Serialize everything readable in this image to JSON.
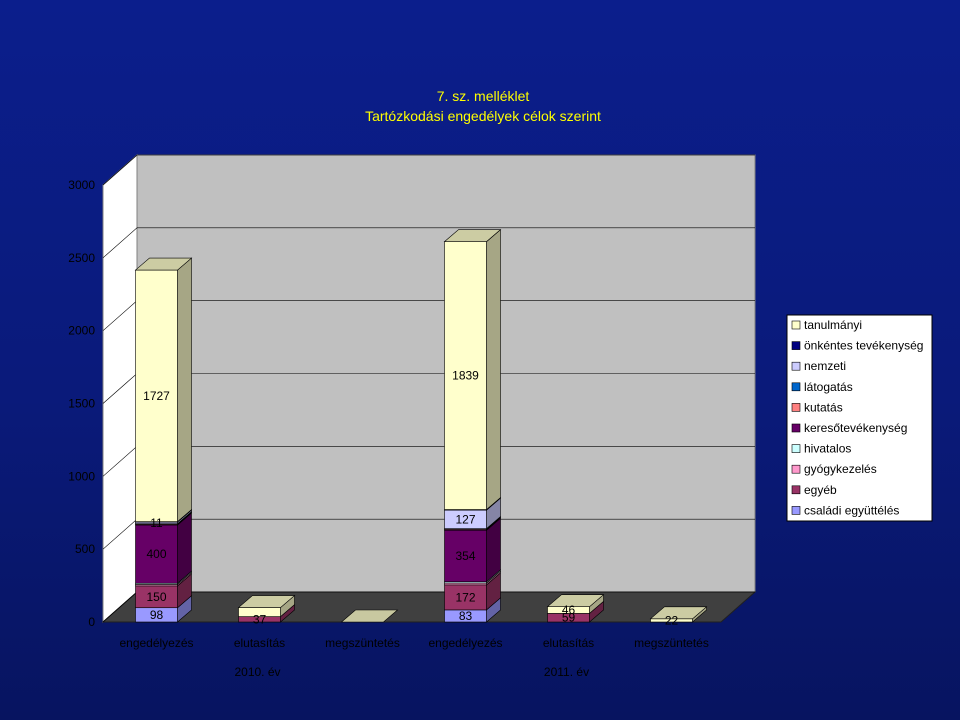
{
  "chart_data": {
    "type": "bar",
    "stacked": true,
    "three_d": true,
    "title_line1": "7. sz. melléklet",
    "title_line2": "Tartózkodási engedélyek célok szerint",
    "ylim": [
      0,
      3000
    ],
    "yticks": [
      "0",
      "500",
      "1000",
      "1500",
      "2000",
      "2500",
      "3000"
    ],
    "categories": [
      "engedélyezés",
      "elutasítás",
      "megszüntetés",
      "engedélyezés",
      "elutasítás",
      "megszüntetés"
    ],
    "groups": [
      "2010. év",
      "2011. év"
    ],
    "series": [
      {
        "name": "családi együttélés",
        "color": "#9999ff",
        "values": [
          98,
          0,
          0,
          83,
          0,
          0
        ]
      },
      {
        "name": "egyéb",
        "color": "#993366",
        "values": [
          150,
          37,
          0,
          172,
          59,
          0
        ]
      },
      {
        "name": "gyógykezelés",
        "color": "#ff99cc",
        "values": [
          10,
          0,
          0,
          12,
          0,
          0
        ]
      },
      {
        "name": "hivatalos",
        "color": "#ccffff",
        "values": [
          8,
          0,
          0,
          9,
          0,
          0
        ]
      },
      {
        "name": "keresőtevékenység",
        "color": "#660066",
        "values": [
          400,
          0,
          0,
          354,
          0,
          0
        ]
      },
      {
        "name": "kutatás",
        "color": "#ff8080",
        "values": [
          5,
          0,
          0,
          6,
          0,
          0
        ]
      },
      {
        "name": "látogatás",
        "color": "#0066cc",
        "values": [
          4,
          0,
          0,
          5,
          0,
          0
        ]
      },
      {
        "name": "nemzeti",
        "color": "#ccccff",
        "values": [
          11,
          0,
          0,
          127,
          0,
          0
        ]
      },
      {
        "name": "önkéntes tevékenység",
        "color": "#000080",
        "values": [
          3,
          0,
          0,
          4,
          0,
          0
        ]
      },
      {
        "name": "tanulmányi",
        "color": "#ffffcc",
        "values": [
          1727,
          62,
          0,
          1839,
          46,
          22
        ]
      }
    ],
    "data_labels": [
      {
        "cat": 0,
        "series": "családi együttélés",
        "text": "98"
      },
      {
        "cat": 0,
        "series": "egyéb",
        "text": "150"
      },
      {
        "cat": 0,
        "series": "keresőtevékenység",
        "text": "400"
      },
      {
        "cat": 0,
        "series": "nemzeti",
        "text": "11"
      },
      {
        "cat": 0,
        "series": "tanulmányi",
        "text": "1727"
      },
      {
        "cat": 1,
        "series": "egyéb",
        "text": "37"
      },
      {
        "cat": 3,
        "series": "családi együttélés",
        "text": "83"
      },
      {
        "cat": 3,
        "series": "egyéb",
        "text": "172"
      },
      {
        "cat": 3,
        "series": "keresőtevékenység",
        "text": "354"
      },
      {
        "cat": 3,
        "series": "nemzeti",
        "text": "127"
      },
      {
        "cat": 3,
        "series": "tanulmányi",
        "text": "1839"
      },
      {
        "cat": 4,
        "series": "egyéb",
        "text": "59"
      },
      {
        "cat": 4,
        "series": "tanulmányi",
        "text": "46"
      },
      {
        "cat": 5,
        "series": "tanulmányi",
        "text": "22"
      }
    ],
    "legend_position": "right",
    "legend_order": [
      "tanulmányi",
      "önkéntes tevékenység",
      "nemzeti",
      "látogatás",
      "kutatás",
      "keresőtevékenység",
      "hivatalos",
      "gyógykezelés",
      "egyéb",
      "családi együttélés"
    ],
    "colors": {
      "background": "#0b1e8c",
      "wall": "#c0c0c0",
      "side_wall": "#ffffff",
      "floor": "#404040",
      "title": "#ffff00"
    }
  }
}
